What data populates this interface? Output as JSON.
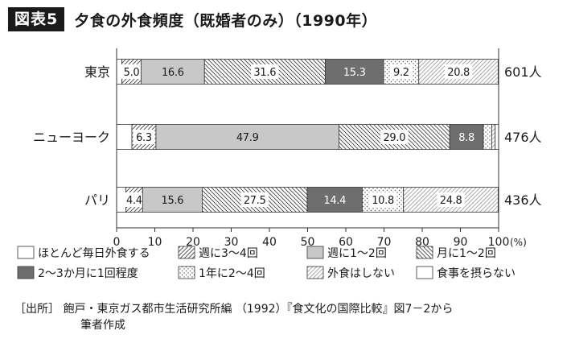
{
  "figure_label": "図表5",
  "chart_title": "夕食の外食頻度（既婚者のみ）（1990年）",
  "source_line1": "［出所］ 飽戸・東京ガス都市生活研究所編 （1992）『食文化の国際比較』図7－2から",
  "source_line2": "筆者作成",
  "chart_data": {
    "type": "bar",
    "orientation": "horizontal",
    "stacked": true,
    "categories": [
      "東京",
      "ニューヨーク",
      "パリ"
    ],
    "totals": [
      "601人",
      "476人",
      "436人"
    ],
    "xlim": [
      0,
      100
    ],
    "x_ticks": [
      "0",
      "10",
      "20",
      "30",
      "40",
      "50",
      "60",
      "70",
      "80",
      "90",
      "100"
    ],
    "x_unit": "(%)",
    "legend_position": "bottom",
    "series": [
      {
        "name": "ほとんど毎日外食する",
        "pattern": "plain-white",
        "values": [
          1.4,
          4.0,
          2.4
        ],
        "labels": [
          "",
          "",
          ""
        ]
      },
      {
        "name": "週に3～4回",
        "pattern": "hatch-right",
        "values": [
          5.0,
          6.3,
          4.4
        ],
        "labels": [
          "5.0",
          "6.3",
          "4.4"
        ]
      },
      {
        "name": "週に1～2回",
        "pattern": "light-gray",
        "values": [
          16.6,
          47.9,
          15.6
        ],
        "labels": [
          "16.6",
          "47.9",
          "15.6"
        ]
      },
      {
        "name": "月に1～2回",
        "pattern": "hatch-left",
        "values": [
          31.6,
          29.0,
          27.5
        ],
        "labels": [
          "31.6",
          "29.0",
          "27.5"
        ]
      },
      {
        "name": "2～3か月に1回程度",
        "pattern": "dark-gray",
        "values": [
          15.3,
          8.8,
          14.4
        ],
        "labels": [
          "15.3",
          "8.8",
          "14.4"
        ]
      },
      {
        "name": "1年に2～4回",
        "pattern": "dots",
        "values": [
          9.2,
          2.2,
          10.8
        ],
        "labels": [
          "9.2",
          "",
          "10.8"
        ]
      },
      {
        "name": "外食はしない",
        "pattern": "hatch-right-light",
        "values": [
          20.8,
          0.9,
          24.8
        ],
        "labels": [
          "20.8",
          "",
          "24.8"
        ]
      },
      {
        "name": "食事を摂らない",
        "pattern": "plain-white",
        "values": [
          0.1,
          0.9,
          0.1
        ],
        "labels": [
          "",
          "",
          ""
        ]
      }
    ],
    "colors": {
      "light_gray": "#c8c8c8",
      "dark_gray": "#6e6e6e",
      "stroke": "#333333",
      "hatch": "#444444",
      "hatch_light": "#9a9a9a"
    }
  }
}
